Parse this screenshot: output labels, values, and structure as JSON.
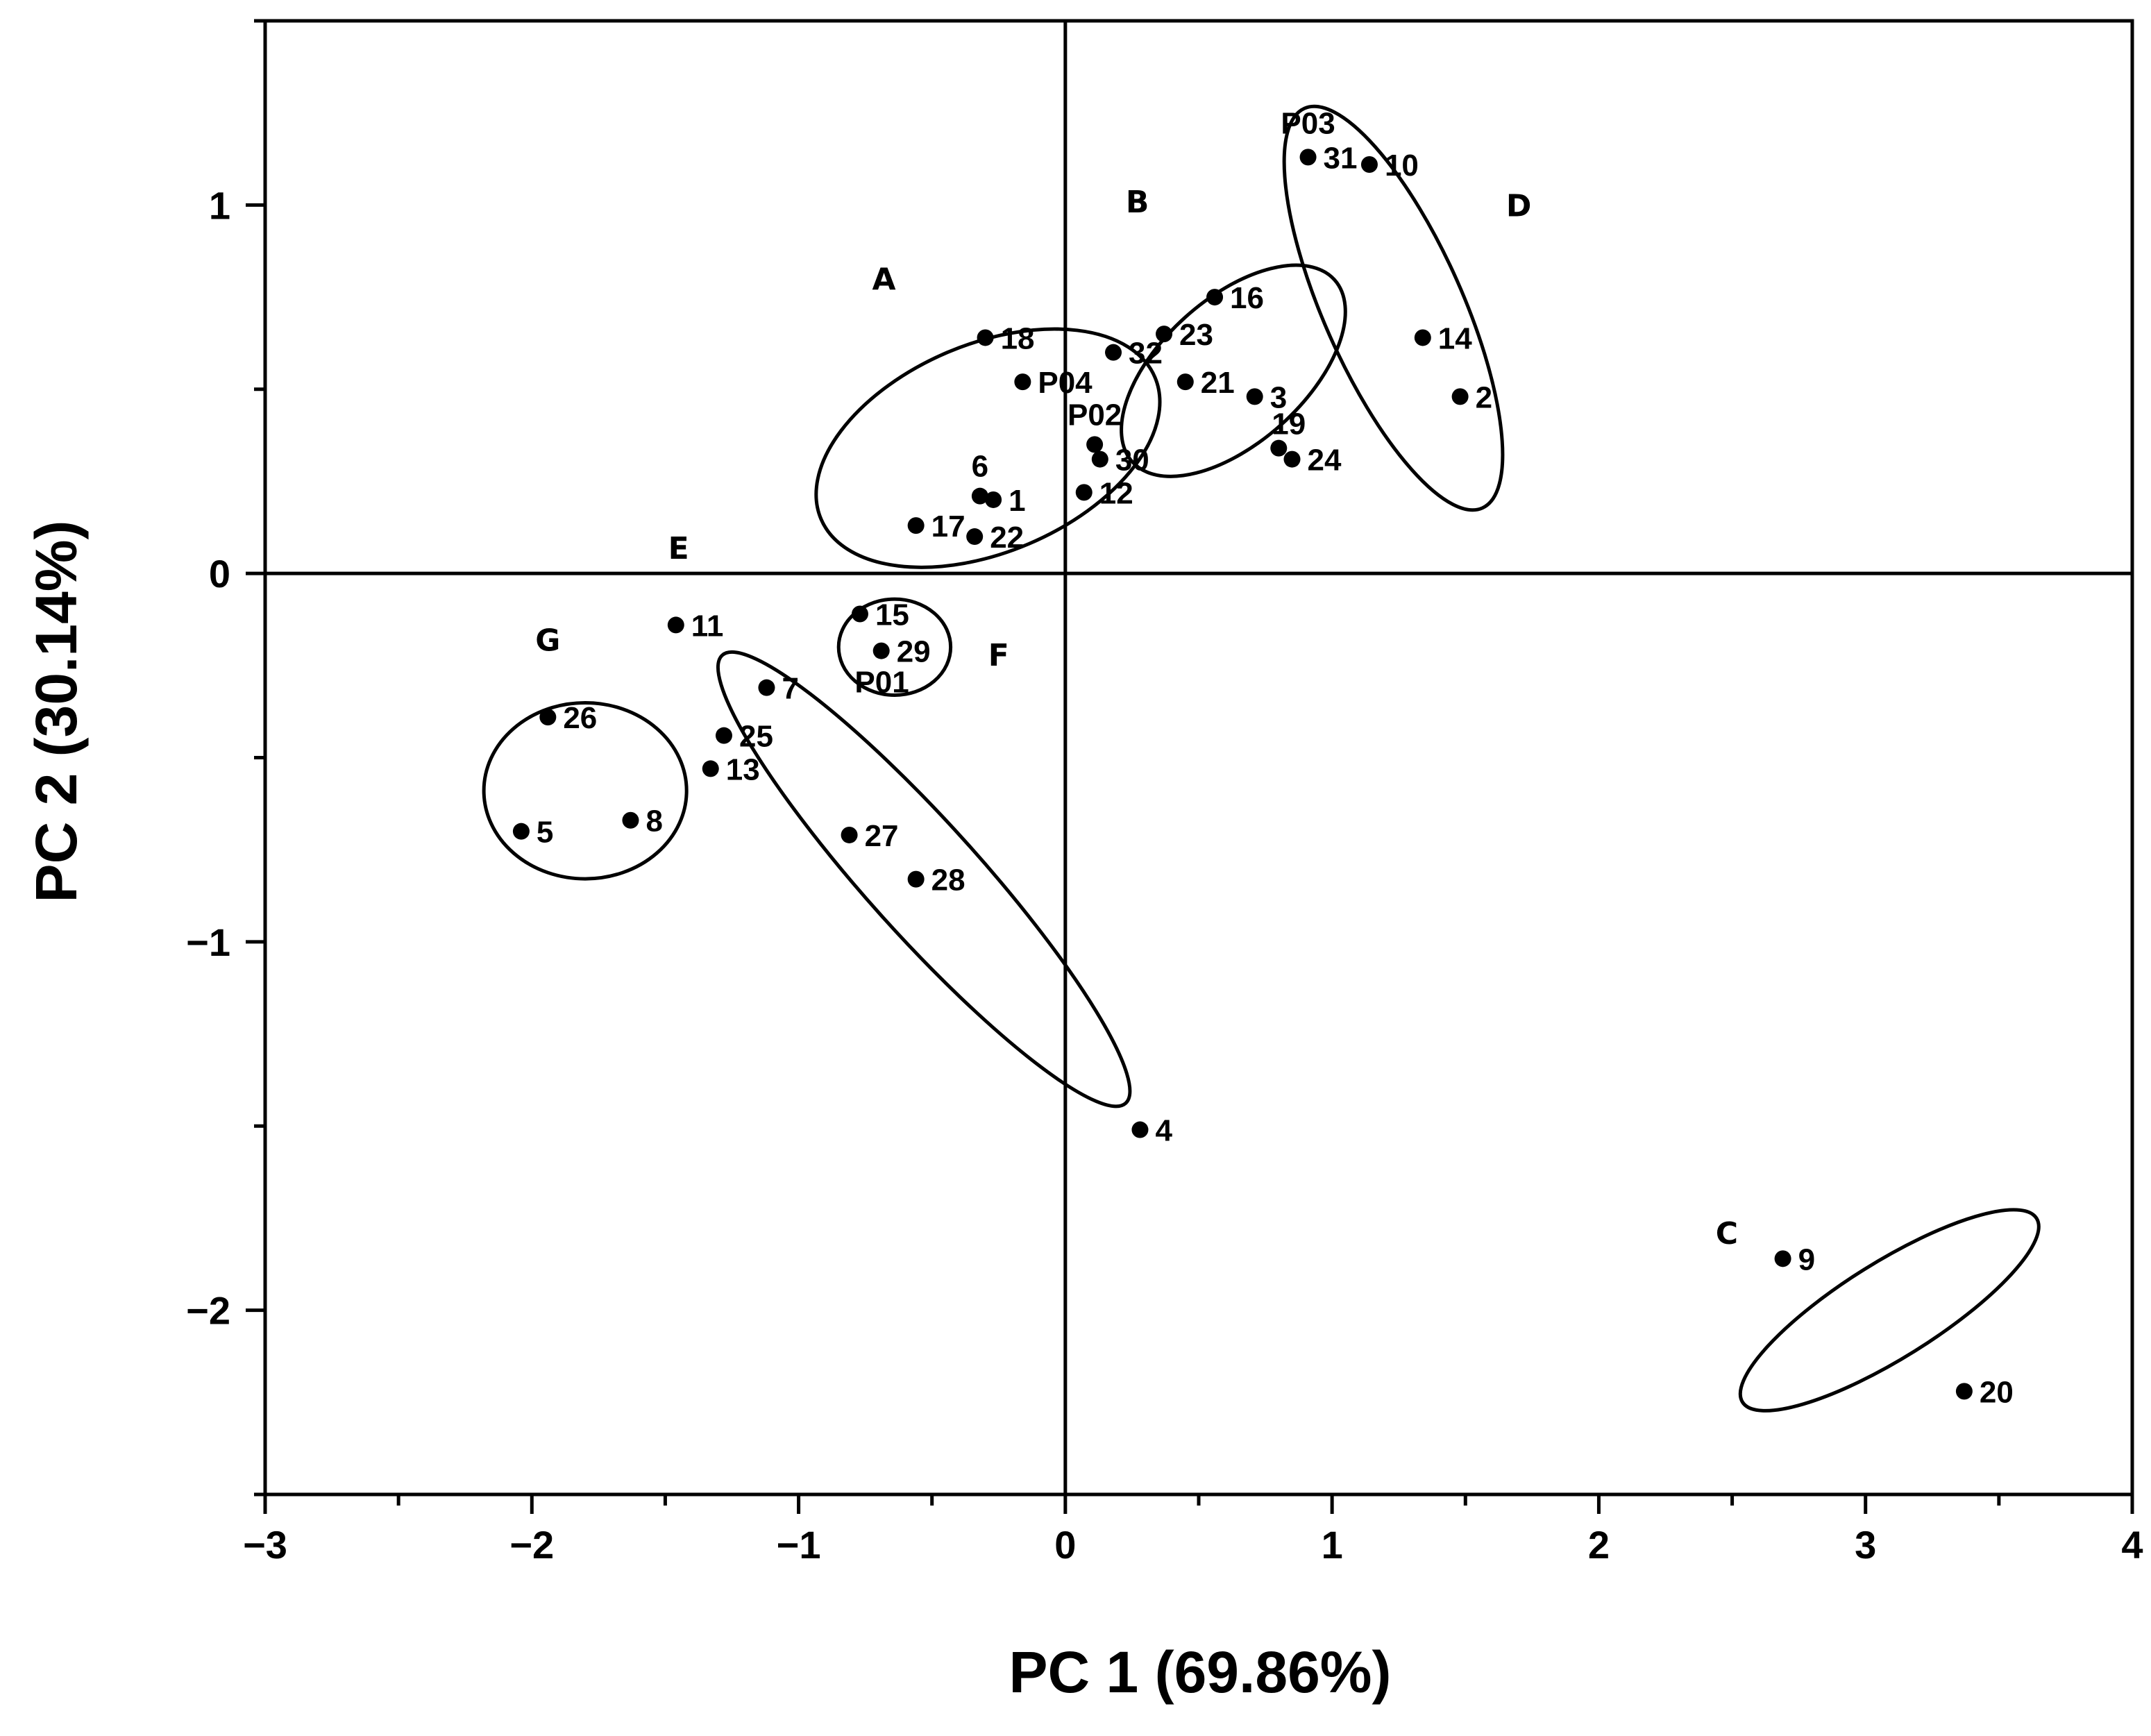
{
  "chart_data": {
    "type": "scatter",
    "xlabel": "PC 1 (69.86%)",
    "ylabel": "PC 2 (30.14%)",
    "xlim": [
      -3,
      4
    ],
    "ylim": [
      -2.5,
      1.5
    ],
    "x_ticks": [
      {
        "value": -3,
        "label": "−3"
      },
      {
        "value": -2,
        "label": "−2"
      },
      {
        "value": -1,
        "label": "−1"
      },
      {
        "value": 0,
        "label": "0"
      },
      {
        "value": 1,
        "label": "1"
      },
      {
        "value": 2,
        "label": "2"
      },
      {
        "value": 3,
        "label": "3"
      },
      {
        "value": 4,
        "label": "4"
      }
    ],
    "y_ticks": [
      {
        "value": 1,
        "label": "1"
      },
      {
        "value": 0,
        "label": "0"
      },
      {
        "value": -1,
        "label": "−1"
      },
      {
        "value": -2,
        "label": "−2"
      }
    ],
    "zero_lines": true,
    "grid": false,
    "points": [
      {
        "label": "P03",
        "x": 0.91,
        "y": 1.13,
        "pos": "above-left"
      },
      {
        "label": "31",
        "x": 0.91,
        "y": 1.13,
        "pos": "right"
      },
      {
        "label": "10",
        "x": 1.14,
        "y": 1.11,
        "pos": "right"
      },
      {
        "label": "16",
        "x": 0.56,
        "y": 0.75,
        "pos": "right"
      },
      {
        "label": "14",
        "x": 1.34,
        "y": 0.64,
        "pos": "right"
      },
      {
        "label": "18",
        "x": -0.3,
        "y": 0.64,
        "pos": "right"
      },
      {
        "label": "23",
        "x": 0.37,
        "y": 0.65,
        "pos": "right"
      },
      {
        "label": "32",
        "x": 0.18,
        "y": 0.6,
        "pos": "right"
      },
      {
        "label": "P04",
        "x": -0.16,
        "y": 0.52,
        "pos": "right"
      },
      {
        "label": "21",
        "x": 0.45,
        "y": 0.52,
        "pos": "right"
      },
      {
        "label": "3",
        "x": 0.71,
        "y": 0.48,
        "pos": "right"
      },
      {
        "label": "2",
        "x": 1.48,
        "y": 0.48,
        "pos": "right"
      },
      {
        "label": "P02",
        "x": 0.11,
        "y": 0.35,
        "pos": "above"
      },
      {
        "label": "30",
        "x": 0.13,
        "y": 0.31,
        "pos": "right"
      },
      {
        "label": "19",
        "x": 0.8,
        "y": 0.34,
        "pos": "above-right"
      },
      {
        "label": "24",
        "x": 0.85,
        "y": 0.31,
        "pos": "right"
      },
      {
        "label": "6",
        "x": -0.32,
        "y": 0.21,
        "pos": "above"
      },
      {
        "label": "1",
        "x": -0.27,
        "y": 0.2,
        "pos": "right"
      },
      {
        "label": "12",
        "x": 0.07,
        "y": 0.22,
        "pos": "right"
      },
      {
        "label": "17",
        "x": -0.56,
        "y": 0.13,
        "pos": "right"
      },
      {
        "label": "22",
        "x": -0.34,
        "y": 0.1,
        "pos": "right"
      },
      {
        "label": "15",
        "x": -0.77,
        "y": -0.11,
        "pos": "right"
      },
      {
        "label": "11",
        "x": -1.46,
        "y": -0.14,
        "pos": "right"
      },
      {
        "label": "29",
        "x": -0.69,
        "y": -0.21,
        "pos": "right"
      },
      {
        "label": "P01",
        "x": -0.69,
        "y": -0.21,
        "pos": "below-left"
      },
      {
        "label": "7",
        "x": -1.12,
        "y": -0.31,
        "pos": "right"
      },
      {
        "label": "26",
        "x": -1.94,
        "y": -0.39,
        "pos": "right"
      },
      {
        "label": "25",
        "x": -1.28,
        "y": -0.44,
        "pos": "right"
      },
      {
        "label": "13",
        "x": -1.33,
        "y": -0.53,
        "pos": "right"
      },
      {
        "label": "5",
        "x": -2.04,
        "y": -0.7,
        "pos": "right"
      },
      {
        "label": "8",
        "x": -1.63,
        "y": -0.67,
        "pos": "right"
      },
      {
        "label": "27",
        "x": -0.81,
        "y": -0.71,
        "pos": "right"
      },
      {
        "label": "28",
        "x": -0.56,
        "y": -0.83,
        "pos": "right"
      },
      {
        "label": "4",
        "x": 0.28,
        "y": -1.51,
        "pos": "right"
      },
      {
        "label": "9",
        "x": 2.69,
        "y": -1.86,
        "pos": "right"
      },
      {
        "label": "20",
        "x": 3.37,
        "y": -2.22,
        "pos": "right"
      }
    ],
    "groups": [
      {
        "label": "A",
        "cx": -0.29,
        "cy": 0.34,
        "rx": 0.68,
        "ry": 0.39,
        "angle": -23,
        "label_x": -0.68,
        "label_y": 0.77
      },
      {
        "label": "B",
        "cx": 0.63,
        "cy": 0.55,
        "rx": 0.51,
        "ry": 0.27,
        "angle": -42,
        "label_x": 0.27,
        "label_y": 0.98
      },
      {
        "label": "C",
        "cx": 3.09,
        "cy": -2.0,
        "rx": 0.65,
        "ry": 0.18,
        "angle": -32,
        "label_x": 2.48,
        "label_y": -1.82
      },
      {
        "label": "D",
        "cx": 1.23,
        "cy": 0.72,
        "rx": 0.82,
        "ry": 0.26,
        "angle": 66,
        "label_x": 1.7,
        "label_y": 0.97
      },
      {
        "label": "E",
        "cx": -0.53,
        "cy": -0.83,
        "rx": 1.13,
        "ry": 0.21,
        "angle": 48,
        "label_x": -1.45,
        "label_y": 0.04
      },
      {
        "label": "F",
        "cx": -0.64,
        "cy": -0.2,
        "rx": 0.21,
        "ry": 0.18,
        "angle": 0,
        "label_x": -0.25,
        "label_y": -0.25
      },
      {
        "label": "G",
        "cx": -1.8,
        "cy": -0.59,
        "rx": 0.38,
        "ry": 0.33,
        "angle": 0,
        "label_x": -1.94,
        "label_y": -0.21
      }
    ]
  }
}
